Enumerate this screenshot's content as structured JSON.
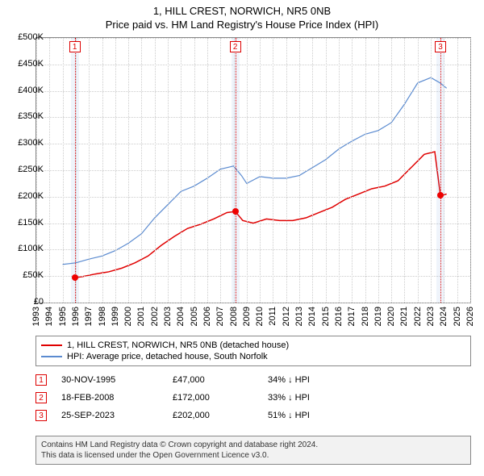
{
  "title_line1": "1, HILL CREST, NORWICH, NR5 0NB",
  "title_line2": "Price paid vs. HM Land Registry's House Price Index (HPI)",
  "chart": {
    "type": "line",
    "background_color": "#ffffff",
    "grid_color": "#cccccc",
    "border_color": "#888888",
    "x": {
      "min": 1993,
      "max": 2026,
      "tick_step": 1,
      "labels": [
        "1993",
        "1994",
        "1995",
        "1996",
        "1997",
        "1998",
        "1999",
        "2000",
        "2001",
        "2002",
        "2003",
        "2004",
        "2005",
        "2006",
        "2007",
        "2008",
        "2009",
        "2010",
        "2011",
        "2012",
        "2013",
        "2014",
        "2015",
        "2016",
        "2017",
        "2018",
        "2019",
        "2020",
        "2021",
        "2022",
        "2023",
        "2024",
        "2025",
        "2026"
      ],
      "fontsize": 11
    },
    "y": {
      "min": 0,
      "max": 500000,
      "tick_step": 50000,
      "labels": [
        "£0",
        "£50K",
        "£100K",
        "£150K",
        "£200K",
        "£250K",
        "£300K",
        "£350K",
        "£400K",
        "£450K",
        "£500K"
      ],
      "fontsize": 11
    },
    "series": [
      {
        "name": "price_paid",
        "label": "1, HILL CREST, NORWICH, NR5 0NB (detached house)",
        "color": "#e00000",
        "line_width": 1.5,
        "points": [
          [
            1995.92,
            47000
          ],
          [
            1996.5,
            49000
          ],
          [
            1997.5,
            54000
          ],
          [
            1998.5,
            58000
          ],
          [
            1999.5,
            65000
          ],
          [
            2000.5,
            75000
          ],
          [
            2001.5,
            88000
          ],
          [
            2002.5,
            108000
          ],
          [
            2003.5,
            125000
          ],
          [
            2004.5,
            140000
          ],
          [
            2005.5,
            148000
          ],
          [
            2006.5,
            158000
          ],
          [
            2007.5,
            170000
          ],
          [
            2008.13,
            172000
          ],
          [
            2008.7,
            155000
          ],
          [
            2009.5,
            150000
          ],
          [
            2010.5,
            158000
          ],
          [
            2011.5,
            155000
          ],
          [
            2012.5,
            155000
          ],
          [
            2013.5,
            160000
          ],
          [
            2014.5,
            170000
          ],
          [
            2015.5,
            180000
          ],
          [
            2016.5,
            195000
          ],
          [
            2017.5,
            205000
          ],
          [
            2018.5,
            215000
          ],
          [
            2019.5,
            220000
          ],
          [
            2020.5,
            230000
          ],
          [
            2021.5,
            255000
          ],
          [
            2022.5,
            280000
          ],
          [
            2023.3,
            285000
          ],
          [
            2023.73,
            202000
          ],
          [
            2024.2,
            205000
          ]
        ]
      },
      {
        "name": "hpi",
        "label": "HPI: Average price, detached house, South Norfolk",
        "color": "#5b8bd0",
        "line_width": 1.2,
        "points": [
          [
            1995.0,
            72000
          ],
          [
            1996.0,
            75000
          ],
          [
            1997.0,
            82000
          ],
          [
            1998.0,
            88000
          ],
          [
            1999.0,
            98000
          ],
          [
            2000.0,
            112000
          ],
          [
            2001.0,
            130000
          ],
          [
            2002.0,
            160000
          ],
          [
            2003.0,
            185000
          ],
          [
            2004.0,
            210000
          ],
          [
            2005.0,
            220000
          ],
          [
            2006.0,
            235000
          ],
          [
            2007.0,
            252000
          ],
          [
            2008.0,
            258000
          ],
          [
            2008.6,
            240000
          ],
          [
            2009.0,
            225000
          ],
          [
            2010.0,
            238000
          ],
          [
            2011.0,
            235000
          ],
          [
            2012.0,
            235000
          ],
          [
            2013.0,
            240000
          ],
          [
            2014.0,
            255000
          ],
          [
            2015.0,
            270000
          ],
          [
            2016.0,
            290000
          ],
          [
            2017.0,
            305000
          ],
          [
            2018.0,
            318000
          ],
          [
            2019.0,
            325000
          ],
          [
            2020.0,
            340000
          ],
          [
            2021.0,
            375000
          ],
          [
            2022.0,
            415000
          ],
          [
            2023.0,
            425000
          ],
          [
            2023.7,
            415000
          ],
          [
            2024.2,
            405000
          ]
        ]
      }
    ],
    "sale_bands": [
      {
        "x": 1995.92,
        "band_color": "rgba(100,150,220,0.10)",
        "line_color": "#dd0000"
      },
      {
        "x": 2008.13,
        "band_color": "rgba(100,150,220,0.10)",
        "line_color": "#dd0000"
      },
      {
        "x": 2023.73,
        "band_color": "rgba(100,150,220,0.10)",
        "line_color": "#dd0000"
      }
    ],
    "sale_markers": [
      {
        "n": "1",
        "x": 1995.92,
        "price": 47000
      },
      {
        "n": "2",
        "x": 2008.13,
        "price": 172000
      },
      {
        "n": "3",
        "x": 2023.73,
        "price": 202000
      }
    ]
  },
  "legend": {
    "items": [
      {
        "color": "#e00000",
        "label": "1, HILL CREST, NORWICH, NR5 0NB (detached house)"
      },
      {
        "color": "#5b8bd0",
        "label": "HPI: Average price, detached house, South Norfolk"
      }
    ]
  },
  "sales": [
    {
      "n": "1",
      "date": "30-NOV-1995",
      "price": "£47,000",
      "diff": "34% ↓ HPI"
    },
    {
      "n": "2",
      "date": "18-FEB-2008",
      "price": "£172,000",
      "diff": "33% ↓ HPI"
    },
    {
      "n": "3",
      "date": "25-SEP-2023",
      "price": "£202,000",
      "diff": "51% ↓ HPI"
    }
  ],
  "footer": {
    "line1": "Contains HM Land Registry data © Crown copyright and database right 2024.",
    "line2": "This data is licensed under the Open Government Licence v3.0."
  }
}
